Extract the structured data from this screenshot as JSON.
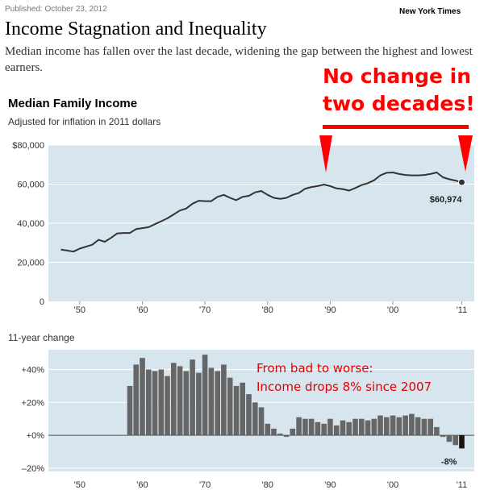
{
  "header": {
    "published": "Published: October 23, 2012",
    "source": "New York Times",
    "title": "Income Stagnation and Inequality",
    "dek": "Median income has fallen over the last decade, widening the gap between the highest and lowest earners."
  },
  "annotations": {
    "top_line1": "No change in",
    "top_line2": "two decades!",
    "bottom_line1": "From bad to worse:",
    "bottom_line2": "Income drops 8% since 2007"
  },
  "colors": {
    "plot_bg": "#d7e6ee",
    "line": "#333333",
    "bar": "#666666",
    "bar_last": "#1a1408",
    "annotation": "#ff0000"
  },
  "chart_data": [
    {
      "type": "line",
      "title": "Median Family Income",
      "subtitle": "Adjusted for inflation in 2011 dollars",
      "xlabel": "",
      "ylabel": "",
      "xlim": [
        1945,
        2013
      ],
      "ylim": [
        0,
        80000
      ],
      "grid": true,
      "yticks": [
        0,
        20000,
        40000,
        60000,
        80000
      ],
      "ytick_labels": [
        "0",
        "20,000",
        "40,000",
        "60,000",
        "$80,000"
      ],
      "xticks": [
        1950,
        1960,
        1970,
        1980,
        1990,
        2000,
        2011
      ],
      "xtick_labels": [
        "'50",
        "'60",
        "'70",
        "'80",
        "'90",
        "'00",
        "'11"
      ],
      "end_label": "$60,974",
      "x": [
        1947,
        1948,
        1949,
        1950,
        1951,
        1952,
        1953,
        1954,
        1955,
        1956,
        1957,
        1958,
        1959,
        1960,
        1961,
        1962,
        1963,
        1964,
        1965,
        1966,
        1967,
        1968,
        1969,
        1970,
        1971,
        1972,
        1973,
        1974,
        1975,
        1976,
        1977,
        1978,
        1979,
        1980,
        1981,
        1982,
        1983,
        1984,
        1985,
        1986,
        1987,
        1988,
        1989,
        1990,
        1991,
        1992,
        1993,
        1994,
        1995,
        1996,
        1997,
        1998,
        1999,
        2000,
        2001,
        2002,
        2003,
        2004,
        2005,
        2006,
        2007,
        2008,
        2009,
        2010,
        2011
      ],
      "series": [
        {
          "name": "Median Family Income",
          "values": [
            26500,
            26000,
            25500,
            27000,
            28000,
            29000,
            31500,
            30500,
            32500,
            34800,
            35000,
            35000,
            37000,
            37500,
            38000,
            39500,
            41000,
            42500,
            44500,
            46500,
            47500,
            50000,
            51500,
            51300,
            51300,
            53500,
            54500,
            53000,
            51800,
            53500,
            54000,
            55800,
            56500,
            54500,
            53000,
            52500,
            53000,
            54500,
            55500,
            57700,
            58500,
            59000,
            59800,
            59000,
            57800,
            57500,
            56700,
            58000,
            59500,
            60500,
            62000,
            64500,
            65800,
            66000,
            65200,
            64700,
            64500,
            64500,
            64700,
            65200,
            66000,
            63500,
            62500,
            61800,
            60974
          ]
        }
      ]
    },
    {
      "type": "bar",
      "title": "11-year change",
      "xlabel": "",
      "ylabel": "",
      "xlim": [
        1945,
        2013
      ],
      "ylim": [
        -22,
        52
      ],
      "grid": true,
      "yticks": [
        -20,
        0,
        20,
        40
      ],
      "ytick_labels": [
        "–20%",
        "+0%",
        "+20%",
        "+40%"
      ],
      "xticks": [
        1950,
        1960,
        1970,
        1980,
        1990,
        2000,
        2011
      ],
      "xtick_labels": [
        "'50",
        "'60",
        "'70",
        "'80",
        "'90",
        "'00",
        "'11"
      ],
      "end_label": "-8%",
      "x": [
        1958,
        1959,
        1960,
        1961,
        1962,
        1963,
        1964,
        1965,
        1966,
        1967,
        1968,
        1969,
        1970,
        1971,
        1972,
        1973,
        1974,
        1975,
        1976,
        1977,
        1978,
        1979,
        1980,
        1981,
        1982,
        1983,
        1984,
        1985,
        1986,
        1987,
        1988,
        1989,
        1990,
        1991,
        1992,
        1993,
        1994,
        1995,
        1996,
        1997,
        1998,
        1999,
        2000,
        2001,
        2002,
        2003,
        2004,
        2005,
        2006,
        2007,
        2008,
        2009,
        2010,
        2011
      ],
      "series": [
        {
          "name": "11-year change",
          "values": [
            30,
            43,
            47,
            40,
            39,
            40,
            36,
            44,
            42,
            39,
            46,
            38,
            49,
            41,
            39,
            43,
            35,
            30,
            32,
            25,
            20,
            17,
            7,
            4,
            1,
            -1,
            4,
            11,
            10,
            10,
            8,
            7,
            10,
            6,
            9,
            8,
            10,
            10,
            9,
            10,
            12,
            11,
            12,
            11,
            12,
            13,
            11,
            10,
            10,
            5,
            -1,
            -4,
            -6,
            -8
          ]
        }
      ]
    }
  ]
}
